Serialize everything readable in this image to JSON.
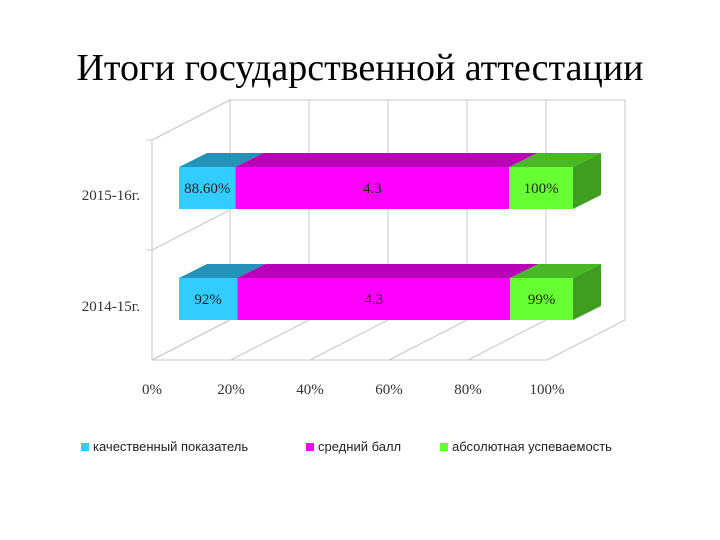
{
  "title": "Итоги государственной аттестации",
  "chart_data": {
    "type": "bar",
    "orientation": "horizontal",
    "stacked": "percent",
    "three_d": true,
    "categories": [
      "2014-15г.",
      "2015-16г."
    ],
    "series": [
      {
        "name": "качественный показатель",
        "color": "#33ccff",
        "values": [
          0.92,
          0.886
        ],
        "labels": [
          "92%",
          "88.60%"
        ]
      },
      {
        "name": "средний балл",
        "color": "#ff00ff",
        "values": [
          4.3,
          4.3
        ],
        "labels": [
          "4.3",
          "4.3"
        ]
      },
      {
        "name": "абсолютная успеваемость",
        "color": "#66ff33",
        "values": [
          0.99,
          1.0
        ],
        "labels": [
          "99%",
          "100%"
        ]
      }
    ],
    "x_ticks": [
      "0%",
      "20%",
      "40%",
      "60%",
      "80%",
      "100%"
    ],
    "xlim": [
      0,
      100
    ],
    "grid": true,
    "legend_position": "bottom"
  }
}
